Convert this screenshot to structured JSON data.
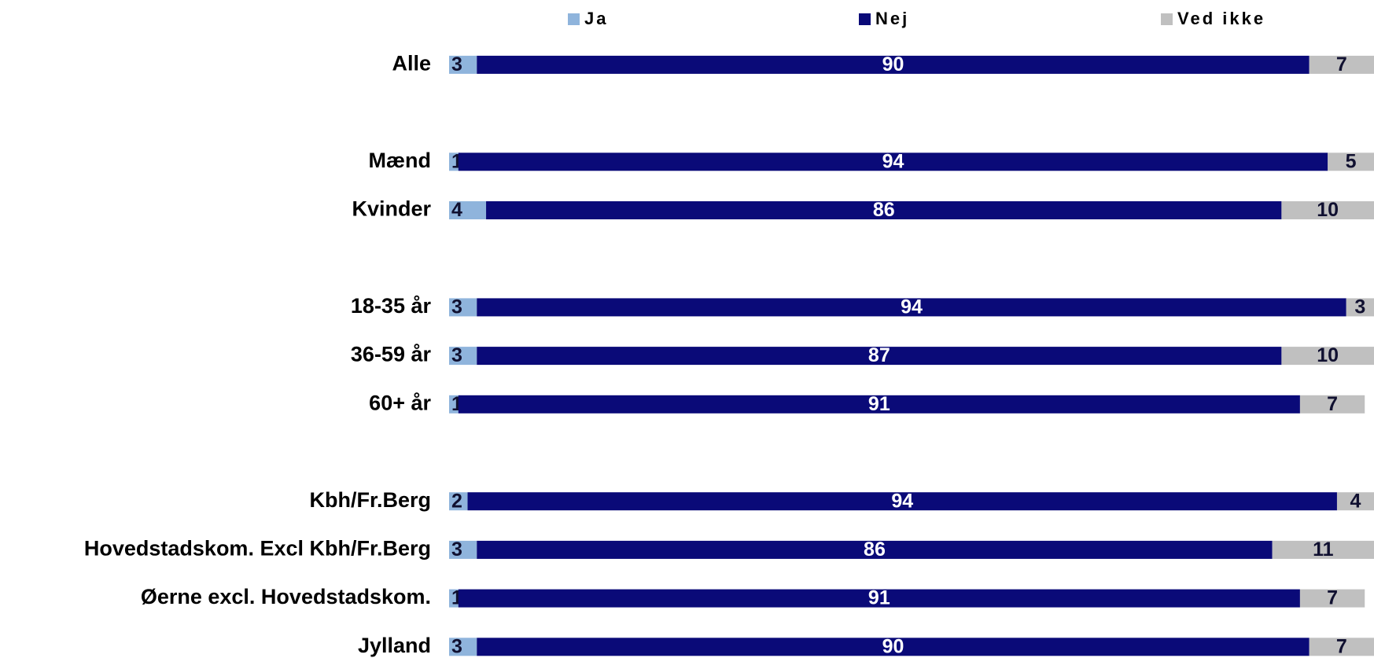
{
  "chart_data": {
    "type": "stacked_bar_horizontal",
    "categories": [
      "Alle",
      null,
      "Mænd",
      "Kvinder",
      null,
      "18-35 år",
      "36-59 år",
      "60+ år",
      null,
      "Kbh/Fr.Berg",
      "Hovedstadskom. Excl Kbh/Fr.Berg",
      "Øerne excl. Hovedstadskom.",
      "Jylland"
    ],
    "series": [
      {
        "name": "Ja",
        "color": "#8fb4dc",
        "values": [
          3,
          null,
          1,
          4,
          null,
          3,
          3,
          1,
          null,
          2,
          3,
          1,
          3
        ]
      },
      {
        "name": "Nej",
        "color": "#0a0a78",
        "values": [
          90,
          null,
          94,
          86,
          null,
          94,
          87,
          91,
          null,
          94,
          86,
          91,
          90
        ]
      },
      {
        "name": "Ved ikke",
        "color": "#c0c0c0",
        "values": [
          7,
          null,
          5,
          10,
          null,
          3,
          10,
          7,
          null,
          4,
          11,
          7,
          7
        ]
      }
    ],
    "xlim": [
      0,
      100
    ],
    "legend": "top"
  }
}
